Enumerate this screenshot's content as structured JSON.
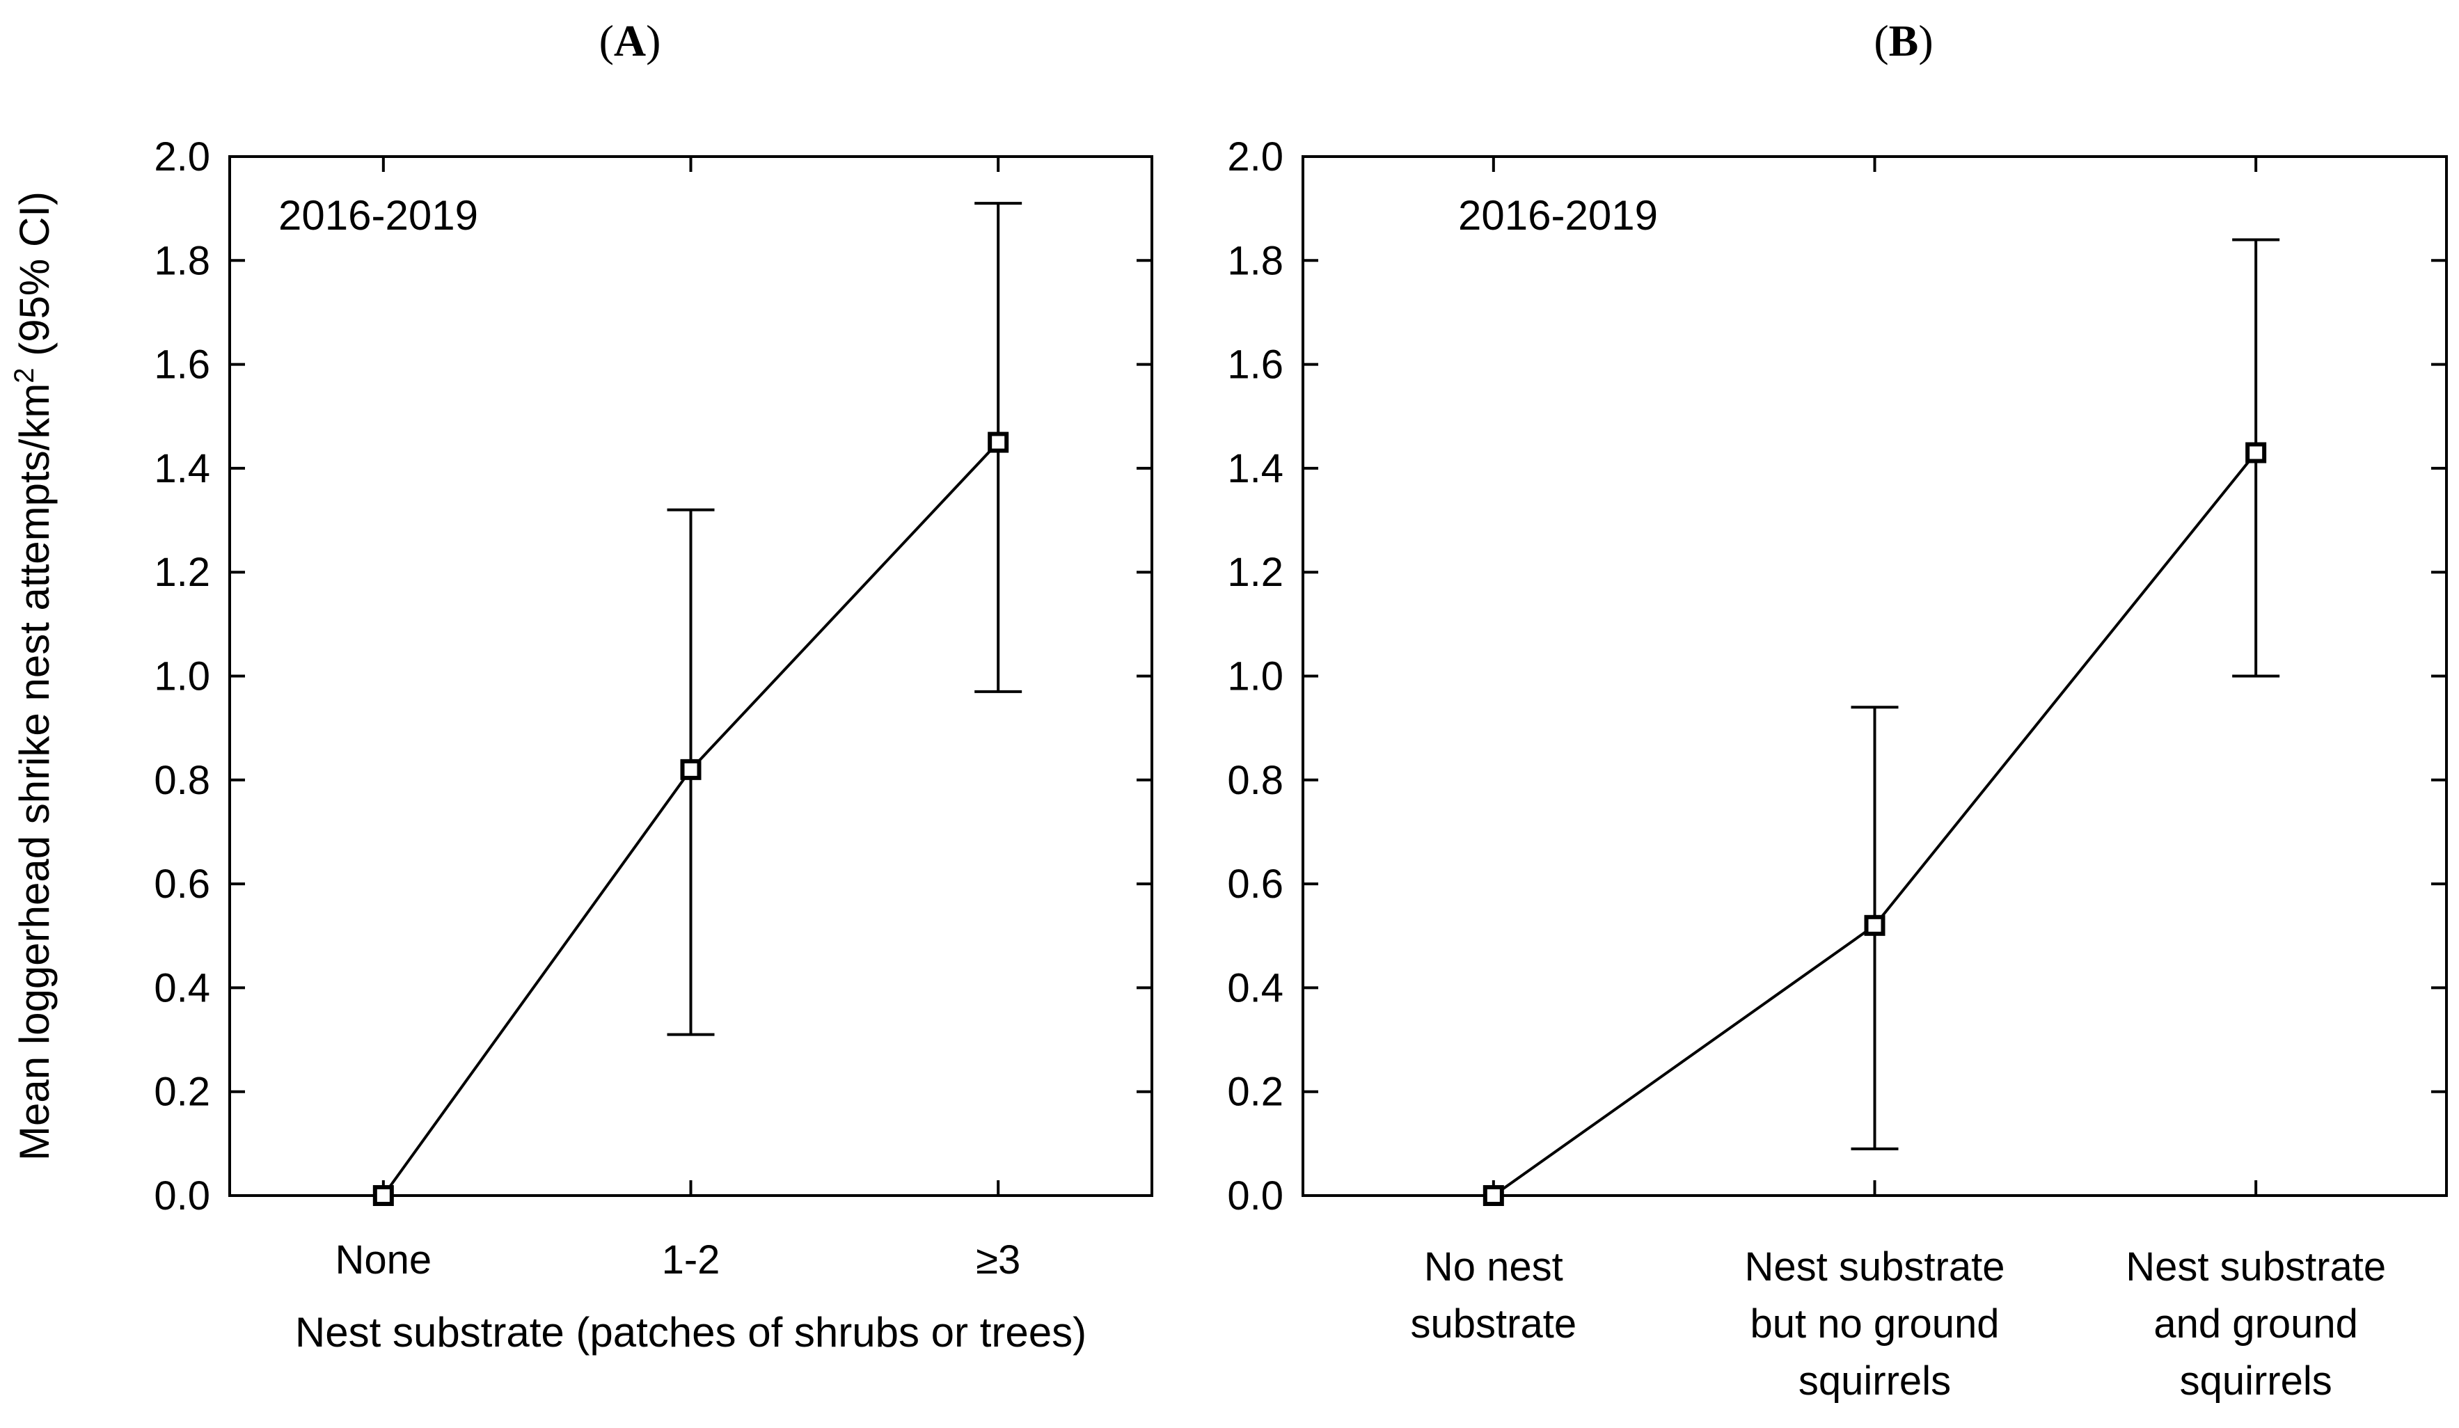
{
  "chart_data": [
    {
      "type": "line",
      "panel_label": "A",
      "annotation": "2016-2019",
      "ylabel": "Mean loggerhead shrike nest attempts/km",
      "ylabel_superscript": "2",
      "ylabel_suffix": " (95% CI)",
      "xlabel": "Nest substrate (patches of shrubs or trees)",
      "categories": [
        [
          "None"
        ],
        [
          "1-2"
        ],
        [
          "≥3"
        ]
      ],
      "values": [
        0.0,
        0.82,
        1.45
      ],
      "ci_lower": [
        0.0,
        0.31,
        0.97
      ],
      "ci_upper": [
        0.0,
        1.32,
        1.91
      ],
      "ylim": [
        0,
        2.0
      ],
      "yticks": [
        "0.0",
        "0.2",
        "0.4",
        "0.6",
        "0.8",
        "1.0",
        "1.2",
        "1.4",
        "1.6",
        "1.8",
        "2.0"
      ],
      "grid": false,
      "marker": "open-square",
      "color": "#000000"
    },
    {
      "type": "line",
      "panel_label": "B",
      "annotation": "2016-2019",
      "xlabel": "",
      "categories": [
        [
          "No nest",
          "substrate"
        ],
        [
          "Nest substrate",
          "but no ground",
          "squirrels"
        ],
        [
          "Nest substrate",
          "and ground",
          "squirrels"
        ]
      ],
      "values": [
        0.0,
        0.52,
        1.43
      ],
      "ci_lower": [
        0.0,
        0.09,
        1.0
      ],
      "ci_upper": [
        0.0,
        0.94,
        1.84
      ],
      "ylim": [
        0,
        2.0
      ],
      "yticks": [
        "0.0",
        "0.2",
        "0.4",
        "0.6",
        "0.8",
        "1.0",
        "1.2",
        "1.4",
        "1.6",
        "1.8",
        "2.0"
      ],
      "grid": false,
      "marker": "open-square",
      "color": "#000000"
    }
  ]
}
